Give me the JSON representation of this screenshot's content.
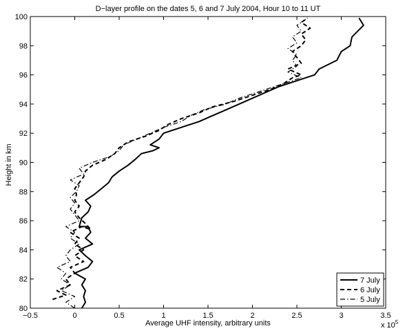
{
  "chart_data": {
    "type": "line",
    "title": "D−layer profile on the dates 5, 6 and 7 July 2004, Hour 10 to 11 UT",
    "xlabel": "Average UHF intensity, arbitrary units",
    "ylabel": "Height in km",
    "xlim": [
      -0.5,
      3.5
    ],
    "ylim": [
      80,
      100
    ],
    "x_exponent_label": "x 10",
    "x_exponent_power": "5",
    "x_ticks": [
      -0.5,
      0,
      0.5,
      1,
      1.5,
      2,
      2.5,
      3,
      3.5
    ],
    "x_tick_labels": [
      "−0.5",
      "0",
      "0.5",
      "1",
      "1.5",
      "2",
      "2.5",
      "3",
      "3.5"
    ],
    "y_ticks": [
      80,
      82,
      84,
      86,
      88,
      90,
      92,
      94,
      96,
      98,
      100
    ],
    "y_tick_labels": [
      "80",
      "82",
      "84",
      "86",
      "88",
      "90",
      "92",
      "94",
      "96",
      "98",
      "100"
    ],
    "grid": false,
    "legend_position": "bottom-right",
    "series": [
      {
        "name": "7 July",
        "style": "solid",
        "points": [
          [
            0.08,
            80.0
          ],
          [
            0.12,
            80.4
          ],
          [
            0.1,
            80.8
          ],
          [
            0.12,
            81.2
          ],
          [
            0.08,
            81.6
          ],
          [
            0.12,
            82.0
          ],
          [
            0.0,
            82.4
          ],
          [
            0.15,
            82.8
          ],
          [
            0.2,
            83.2
          ],
          [
            0.12,
            83.6
          ],
          [
            0.05,
            84.0
          ],
          [
            0.2,
            84.4
          ],
          [
            0.12,
            84.8
          ],
          [
            0.18,
            85.2
          ],
          [
            0.15,
            85.6
          ],
          [
            0.05,
            85.6
          ],
          [
            0.08,
            86.2
          ],
          [
            0.15,
            86.6
          ],
          [
            0.18,
            87.0
          ],
          [
            0.12,
            87.4
          ],
          [
            0.22,
            87.8
          ],
          [
            0.3,
            88.2
          ],
          [
            0.38,
            88.6
          ],
          [
            0.42,
            89.0
          ],
          [
            0.5,
            89.4
          ],
          [
            0.6,
            89.8
          ],
          [
            0.68,
            90.2
          ],
          [
            0.75,
            90.6
          ],
          [
            0.88,
            90.8
          ],
          [
            0.95,
            91.0
          ],
          [
            0.85,
            91.2
          ],
          [
            0.95,
            91.6
          ],
          [
            1.0,
            92.0
          ],
          [
            1.2,
            92.4
          ],
          [
            1.4,
            92.8
          ],
          [
            1.55,
            93.2
          ],
          [
            1.7,
            93.6
          ],
          [
            1.85,
            94.0
          ],
          [
            2.0,
            94.4
          ],
          [
            2.15,
            94.8
          ],
          [
            2.3,
            95.2
          ],
          [
            2.5,
            95.6
          ],
          [
            2.7,
            96.0
          ],
          [
            2.75,
            96.4
          ],
          [
            2.95,
            97.0
          ],
          [
            3.0,
            97.6
          ],
          [
            3.1,
            98.0
          ],
          [
            3.12,
            98.6
          ],
          [
            3.25,
            99.4
          ],
          [
            3.2,
            99.9
          ]
        ]
      },
      {
        "name": "6 July",
        "style": "dashed",
        "points": [
          [
            -0.25,
            80.6
          ],
          [
            -0.1,
            80.9
          ],
          [
            -0.2,
            81.2
          ],
          [
            -0.05,
            81.6
          ],
          [
            -0.1,
            82.0
          ],
          [
            0.0,
            82.4
          ],
          [
            -0.05,
            82.8
          ],
          [
            0.1,
            83.2
          ],
          [
            0.0,
            83.6
          ],
          [
            0.1,
            84.0
          ],
          [
            0.0,
            84.4
          ],
          [
            0.05,
            84.8
          ],
          [
            -0.05,
            85.2
          ],
          [
            0.08,
            85.6
          ],
          [
            0.18,
            85.4
          ],
          [
            0.12,
            85.8
          ],
          [
            0.05,
            86.2
          ],
          [
            0.0,
            86.6
          ],
          [
            0.05,
            87.0
          ],
          [
            0.0,
            87.4
          ],
          [
            0.02,
            87.8
          ],
          [
            0.0,
            88.2
          ],
          [
            0.05,
            88.6
          ],
          [
            0.1,
            89.0
          ],
          [
            0.12,
            89.4
          ],
          [
            0.2,
            89.8
          ],
          [
            0.35,
            90.2
          ],
          [
            0.45,
            90.6
          ],
          [
            0.5,
            91.0
          ],
          [
            0.6,
            91.4
          ],
          [
            0.8,
            91.8
          ],
          [
            0.95,
            92.2
          ],
          [
            1.05,
            92.6
          ],
          [
            1.2,
            93.0
          ],
          [
            1.4,
            93.4
          ],
          [
            1.55,
            93.8
          ],
          [
            1.8,
            94.2
          ],
          [
            2.0,
            94.6
          ],
          [
            2.2,
            95.0
          ],
          [
            2.35,
            95.4
          ],
          [
            2.45,
            95.8
          ],
          [
            2.55,
            96.0
          ],
          [
            2.4,
            96.4
          ],
          [
            2.55,
            96.8
          ],
          [
            2.5,
            97.2
          ],
          [
            2.45,
            97.6
          ],
          [
            2.55,
            98.0
          ],
          [
            2.6,
            98.4
          ],
          [
            2.55,
            98.8
          ],
          [
            2.65,
            99.2
          ],
          [
            2.55,
            99.6
          ],
          [
            2.62,
            99.9
          ]
        ]
      },
      {
        "name": "5 July",
        "style": "dashdot",
        "points": [
          [
            0.0,
            80.0
          ],
          [
            -0.1,
            80.4
          ],
          [
            0.0,
            80.8
          ],
          [
            -0.15,
            81.2
          ],
          [
            -0.05,
            81.6
          ],
          [
            -0.15,
            82.0
          ],
          [
            -0.1,
            82.4
          ],
          [
            -0.2,
            82.8
          ],
          [
            -0.05,
            83.2
          ],
          [
            -0.1,
            83.6
          ],
          [
            -0.05,
            84.0
          ],
          [
            0.05,
            84.4
          ],
          [
            -0.05,
            84.8
          ],
          [
            0.0,
            85.2
          ],
          [
            -0.1,
            85.6
          ],
          [
            0.05,
            86.0
          ],
          [
            0.0,
            86.4
          ],
          [
            -0.05,
            86.8
          ],
          [
            0.0,
            87.2
          ],
          [
            -0.05,
            87.6
          ],
          [
            0.02,
            88.0
          ],
          [
            0.05,
            88.4
          ],
          [
            -0.05,
            88.8
          ],
          [
            0.1,
            89.2
          ],
          [
            0.05,
            89.6
          ],
          [
            0.2,
            90.0
          ],
          [
            0.4,
            90.4
          ],
          [
            0.5,
            90.8
          ],
          [
            0.55,
            91.2
          ],
          [
            0.7,
            91.6
          ],
          [
            0.85,
            92.0
          ],
          [
            1.0,
            92.4
          ],
          [
            1.2,
            92.8
          ],
          [
            1.3,
            93.2
          ],
          [
            1.45,
            93.6
          ],
          [
            1.7,
            94.0
          ],
          [
            1.85,
            94.4
          ],
          [
            2.05,
            94.8
          ],
          [
            2.25,
            95.2
          ],
          [
            2.45,
            95.6
          ],
          [
            2.55,
            95.8
          ],
          [
            2.4,
            96.2
          ],
          [
            2.5,
            96.6
          ],
          [
            2.45,
            97.0
          ],
          [
            2.5,
            97.4
          ],
          [
            2.4,
            97.8
          ],
          [
            2.5,
            98.2
          ],
          [
            2.45,
            98.6
          ],
          [
            2.55,
            99.0
          ],
          [
            2.5,
            99.4
          ],
          [
            2.6,
            99.8
          ]
        ]
      }
    ]
  }
}
